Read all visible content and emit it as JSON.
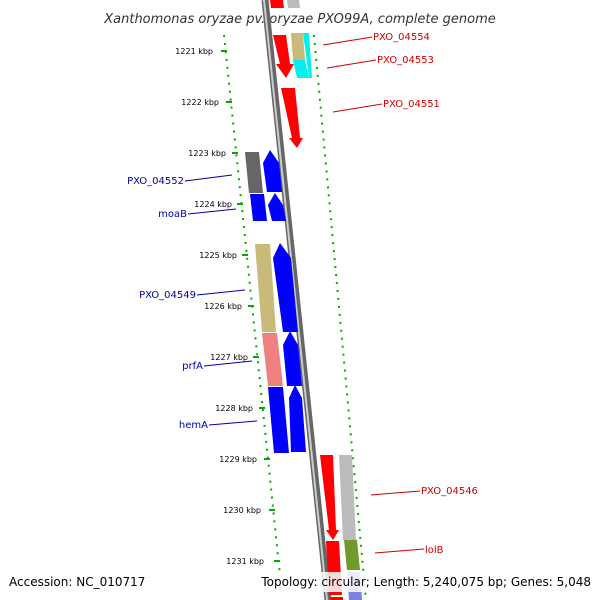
{
  "title": "Xanthomonas oryzae pv. oryzae PXO99A, complete genome",
  "footer": {
    "accession": "Accession: NC_010717",
    "summary": "Topology: circular; Length: 5,240,075 bp; Genes: 5,048"
  },
  "kbp_labels": [
    "1221 kbp",
    "1222 kbp",
    "1223 kbp",
    "1224 kbp",
    "1225 kbp",
    "1226 kbp",
    "1227 kbp",
    "1228 kbp",
    "1229 kbp",
    "1230 kbp",
    "1231 kbp"
  ],
  "genes_forward": [
    {
      "name": "PXO_04554",
      "color": "#ff0000"
    },
    {
      "name": "PXO_04553",
      "color": "#ff0000"
    },
    {
      "name": "PXO_04551",
      "color": "#ff0000"
    },
    {
      "name": "PXO_04546",
      "color": "#ff0000"
    },
    {
      "name": "lolB",
      "color": "#ff0000"
    }
  ],
  "genes_reverse": [
    {
      "name": "PXO_04552",
      "color": "#0000ff"
    },
    {
      "name": "moaB",
      "color": "#0000ff"
    },
    {
      "name": "PXO_04549",
      "color": "#0000ff"
    },
    {
      "name": "prfA",
      "color": "#0000ff"
    },
    {
      "name": "hemA",
      "color": "#0000ff"
    }
  ],
  "category_colors": {
    "gray": "#666666",
    "khaki": "#c8bb7a",
    "salmon": "#f08080",
    "cyan": "#00f0f0",
    "lightgray": "#bbbbbb",
    "olive": "#6f9b2a",
    "lavender": "#8080e0"
  }
}
